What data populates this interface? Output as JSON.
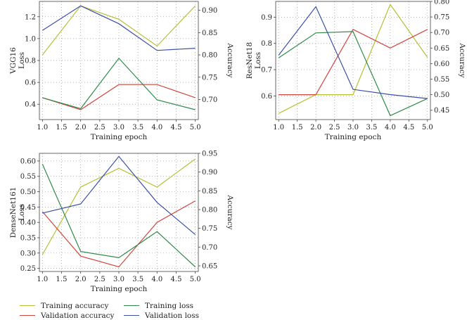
{
  "colors": {
    "training_accuracy": "#b5c035",
    "validation_accuracy": "#d0463f",
    "training_loss": "#2f8a4a",
    "validation_loss": "#3b4fa6"
  },
  "legend": [
    {
      "key": "training_accuracy",
      "label": "Training accuracy"
    },
    {
      "key": "training_loss",
      "label": "Training loss"
    },
    {
      "key": "validation_accuracy",
      "label": "Validation accuracy"
    },
    {
      "key": "validation_loss",
      "label": "Validation loss"
    }
  ],
  "chart_data": [
    {
      "type": "line",
      "panel": "VGG16",
      "xlabel": "Training epoch",
      "ylabel_left": "VGG16\nLoss",
      "ylabel_right": "Accuracy",
      "x": [
        1,
        2,
        3,
        4,
        5
      ],
      "xticks": [
        "1.0",
        "1.5",
        "2.0",
        "2.5",
        "3.0",
        "3.5",
        "4.0",
        "4.5",
        "5.0"
      ],
      "xlim": [
        0.92,
        5.08
      ],
      "ylim_left": [
        0.26,
        1.34
      ],
      "yticks_left": [
        "0.4",
        "0.6",
        "0.8",
        "1.0",
        "1.2"
      ],
      "ylim_right": [
        0.655,
        0.92
      ],
      "yticks_right": [
        "0.70",
        "0.75",
        "0.80",
        "0.85",
        "0.90"
      ],
      "grid": true,
      "series": [
        {
          "name": "Training accuracy",
          "key": "training_accuracy",
          "axis": "right",
          "values": [
            0.8,
            0.91,
            0.88,
            0.82,
            0.91
          ]
        },
        {
          "name": "Validation accuracy",
          "key": "validation_accuracy",
          "axis": "left",
          "values": [
            0.46,
            0.35,
            0.58,
            0.58,
            0.46
          ]
        },
        {
          "name": "Training loss",
          "key": "training_loss",
          "axis": "left",
          "values": [
            0.46,
            0.36,
            0.82,
            0.44,
            0.35
          ]
        },
        {
          "name": "Validation loss",
          "key": "validation_loss",
          "axis": "right",
          "values": [
            0.855,
            0.91,
            0.87,
            0.81,
            0.815
          ]
        }
      ]
    },
    {
      "type": "line",
      "panel": "ResNet18",
      "xlabel": "Training epoch",
      "ylabel_left": "ResNet18\nLoss",
      "ylabel_right": "Accuracy",
      "x": [
        1,
        2,
        3,
        4,
        5
      ],
      "xticks": [
        "1.0",
        "1.5",
        "2.0",
        "2.5",
        "3.0",
        "3.5",
        "4.0",
        "4.5",
        "5.0"
      ],
      "xlim": [
        0.92,
        5.08
      ],
      "ylim_left": [
        0.51,
        0.96
      ],
      "yticks_left": [
        "0.6",
        "0.7",
        "0.8",
        "0.9"
      ],
      "ylim_right": [
        0.42,
        0.8
      ],
      "yticks_right": [
        "0.45",
        "0.50",
        "0.55",
        "0.60",
        "0.65",
        "0.70",
        "0.75",
        "0.80"
      ],
      "grid": true,
      "series": [
        {
          "name": "Training accuracy",
          "key": "training_accuracy",
          "axis": "right",
          "values": [
            0.44,
            0.5,
            0.5,
            0.79,
            0.62
          ]
        },
        {
          "name": "Validation accuracy",
          "key": "validation_accuracy",
          "axis": "right",
          "values": [
            0.5,
            0.5,
            0.71,
            0.65,
            0.71
          ]
        },
        {
          "name": "Training loss",
          "key": "training_loss",
          "axis": "left",
          "values": [
            0.745,
            0.84,
            0.845,
            0.525,
            0.59
          ]
        },
        {
          "name": "Validation loss",
          "key": "validation_loss",
          "axis": "left",
          "values": [
            0.755,
            0.94,
            0.625,
            0.605,
            0.59
          ]
        }
      ]
    },
    {
      "type": "line",
      "panel": "DenseNet161",
      "xlabel": "Training epoch",
      "ylabel_left": "DenseNet161\nLoss",
      "ylabel_right": "Accuracy",
      "x": [
        1,
        2,
        3,
        4,
        5
      ],
      "xticks": [
        "1.0",
        "1.5",
        "2.0",
        "2.5",
        "3.0",
        "3.5",
        "4.0",
        "4.5",
        "5.0"
      ],
      "xlim": [
        0.92,
        5.08
      ],
      "ylim_left": [
        0.24,
        0.625
      ],
      "yticks_left": [
        "0.25",
        "0.30",
        "0.35",
        "0.40",
        "0.45",
        "0.50",
        "0.55",
        "0.60"
      ],
      "ylim_right": [
        0.635,
        0.95
      ],
      "yticks_right": [
        "0.65",
        "0.70",
        "0.75",
        "0.80",
        "0.85",
        "0.90",
        "0.95"
      ],
      "grid": true,
      "series": [
        {
          "name": "Training accuracy",
          "key": "training_accuracy",
          "axis": "right",
          "values": [
            0.68,
            0.86,
            0.91,
            0.86,
            0.935
          ]
        },
        {
          "name": "Validation accuracy",
          "key": "validation_accuracy",
          "axis": "left",
          "values": [
            0.435,
            0.29,
            0.255,
            0.4,
            0.47
          ]
        },
        {
          "name": "Training loss",
          "key": "training_loss",
          "axis": "left",
          "values": [
            0.59,
            0.305,
            0.285,
            0.37,
            0.255
          ]
        },
        {
          "name": "Validation loss",
          "key": "validation_loss",
          "axis": "left",
          "values": [
            0.43,
            0.46,
            0.615,
            0.465,
            0.36
          ]
        }
      ]
    }
  ]
}
